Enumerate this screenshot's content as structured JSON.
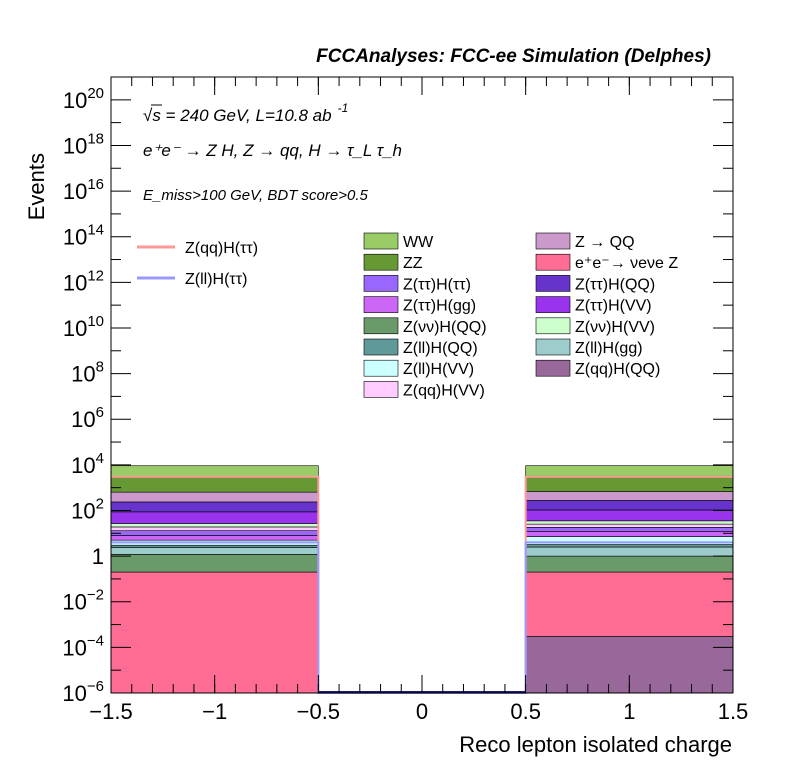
{
  "header": {
    "title": "FCCAnalyses: FCC-ee Simulation (Delphes)"
  },
  "annotations": {
    "line1_prefix": "√s = 240 GeV, L=10.8 ab",
    "line1_sup": "-1",
    "line2": "e⁺e⁻ → Z H, Z → qq, H → τ_L τ_h",
    "line3": "E_miss>100 GeV, BDT score>0.5"
  },
  "chart_data": {
    "type": "bar",
    "title": "FCCAnalyses: FCC-ee Simulation (Delphes)",
    "xlabel": "Reco lepton isolated charge",
    "ylabel": "Events",
    "xlim": [
      -1.5,
      1.5
    ],
    "ylim": [
      1e-06,
      1e+21
    ],
    "yscale": "log",
    "stacked": true,
    "bins": [
      [
        -1.5,
        -0.5
      ],
      [
        -0.5,
        0.5
      ],
      [
        0.5,
        1.5
      ]
    ],
    "x_ticks": [
      "−1.5",
      "−1",
      "−0.5",
      "0",
      "0.5",
      "1",
      "1.5"
    ],
    "x_tick_values": [
      -1.5,
      -1,
      -0.5,
      0,
      0.5,
      1,
      1.5
    ],
    "y_ticks": [
      {
        "value": 1e-06,
        "base": "10",
        "exp": "−6"
      },
      {
        "value": 0.0001,
        "base": "10",
        "exp": "−4"
      },
      {
        "value": 0.01,
        "base": "10",
        "exp": "−2"
      },
      {
        "value": 1,
        "base": "1",
        "exp": ""
      },
      {
        "value": 100.0,
        "base": "10",
        "exp": "2"
      },
      {
        "value": 10000.0,
        "base": "10",
        "exp": "4"
      },
      {
        "value": 1000000.0,
        "base": "10",
        "exp": "6"
      },
      {
        "value": 100000000.0,
        "base": "10",
        "exp": "8"
      },
      {
        "value": 10000000000.0,
        "base": "10",
        "exp": "10"
      },
      {
        "value": 1000000000000.0,
        "base": "10",
        "exp": "12"
      },
      {
        "value": 100000000000000.0,
        "base": "10",
        "exp": "14"
      },
      {
        "value": 1e+16,
        "base": "10",
        "exp": "16"
      },
      {
        "value": 1e+18,
        "base": "10",
        "exp": "18"
      },
      {
        "value": 1e+20,
        "base": "10",
        "exp": "20"
      }
    ],
    "stack_series": [
      {
        "name": "Z(qq)H(QQ)",
        "color": "#98689a",
        "values": [
          0.0,
          0,
          0.0003
        ]
      },
      {
        "name": "e⁺e⁻→ νeνe Z",
        "color": "#ff6d94",
        "values": [
          0.2,
          0,
          0.2
        ]
      },
      {
        "name": "Z(νν)H(QQ)",
        "color": "#6a9a6a",
        "values": [
          1.0,
          0,
          0.8
        ]
      },
      {
        "name": "Z(ll)H(gg)",
        "color": "#9ccccc",
        "values": [
          1.2,
          0,
          1.5
        ]
      },
      {
        "name": "Z(ll)H(QQ)",
        "color": "#5f9999",
        "values": [
          0.6,
          0,
          0.7
        ]
      },
      {
        "name": "Z(ll)H(VV)",
        "color": "#ccffff",
        "values": [
          2.0,
          0,
          4.0
        ]
      },
      {
        "name": "Z(ττ)H(gg)",
        "color": "#cc66f5",
        "values": [
          3.0,
          0,
          5.0
        ]
      },
      {
        "name": "Z(ττ)H(ττ)",
        "color": "#9966ff",
        "values": [
          5.0,
          0,
          6.0
        ]
      },
      {
        "name": "Z(qq)H(VV)",
        "color": "#ffccff",
        "values": [
          6.0,
          0,
          7.0
        ]
      },
      {
        "name": "Z(νν)H(VV)",
        "color": "#ccffcc",
        "values": [
          8.0,
          0,
          10.0
        ]
      },
      {
        "name": "Z(ττ)H(VV)",
        "color": "#9933ee",
        "values": [
          60,
          0,
          70
        ]
      },
      {
        "name": "Z(ττ)H(QQ)",
        "color": "#6633cc",
        "values": [
          150,
          0,
          170
        ]
      },
      {
        "name": "Z → QQ",
        "color": "#cc99cc",
        "values": [
          400,
          0,
          400
        ]
      },
      {
        "name": "ZZ",
        "color": "#669933",
        "values": [
          2500,
          0,
          2500
        ]
      },
      {
        "name": "WW",
        "color": "#99cc66",
        "values": [
          6000,
          0,
          6000
        ]
      }
    ],
    "line_series": [
      {
        "name": "Z(qq)H(ττ)",
        "color": "#ff9999",
        "values": [
          3000,
          0,
          3000
        ]
      },
      {
        "name": "Z(ll)H(ττ)",
        "color": "#9999ff",
        "values": [
          4,
          0,
          4
        ]
      }
    ],
    "legend_lines": [
      {
        "label": "Z(qq)H(ττ)",
        "color": "#ff9999"
      },
      {
        "label": "Z(ll)H(ττ)",
        "color": "#9999ff"
      }
    ],
    "legend_col1": [
      {
        "label": "WW",
        "color": "#99cc66"
      },
      {
        "label": "ZZ",
        "color": "#669933"
      },
      {
        "label": "Z(ττ)H(ττ)",
        "color": "#9966ff"
      },
      {
        "label": "Z(ττ)H(gg)",
        "color": "#cc66f5"
      },
      {
        "label": "Z(νν)H(QQ)",
        "color": "#6a9a6a"
      },
      {
        "label": "Z(ll)H(QQ)",
        "color": "#5f9999"
      },
      {
        "label": "Z(ll)H(VV)",
        "color": "#ccffff"
      },
      {
        "label": "Z(qq)H(VV)",
        "color": "#ffccff"
      }
    ],
    "legend_col2": [
      {
        "label": "Z → QQ",
        "color": "#cc99cc"
      },
      {
        "label": "e⁺e⁻→ νeνe Z",
        "color": "#ff6d94"
      },
      {
        "label": "Z(ττ)H(QQ)",
        "color": "#6633cc"
      },
      {
        "label": "Z(ττ)H(VV)",
        "color": "#9933ee"
      },
      {
        "label": "Z(νν)H(VV)",
        "color": "#ccffcc"
      },
      {
        "label": "Z(ll)H(gg)",
        "color": "#9ccccc"
      },
      {
        "label": "Z(qq)H(QQ)",
        "color": "#98689a"
      }
    ]
  }
}
